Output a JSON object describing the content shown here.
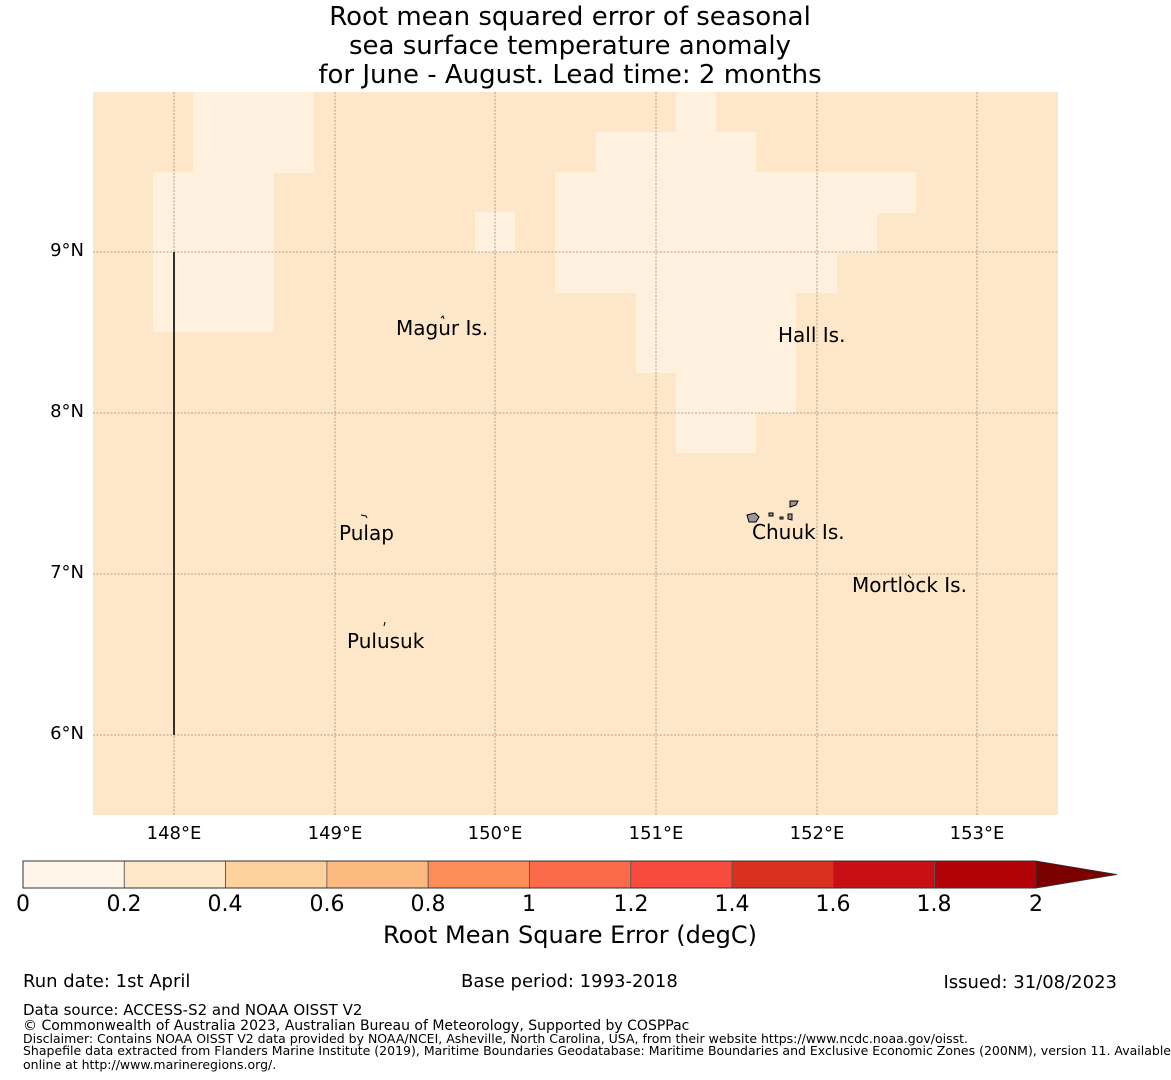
{
  "title": {
    "line1": "Root mean squared error of seasonal",
    "line2": "sea surface temperature anomaly",
    "line3": "for June - August. Lead time: 2 months"
  },
  "map": {
    "lon_range": [
      147.5,
      153.5
    ],
    "lat_range": [
      5.5,
      10.0
    ],
    "x_ticks": [
      "148°E",
      "149°E",
      "150°E",
      "151°E",
      "152°E",
      "153°E"
    ],
    "y_ticks": [
      "9°N",
      "8°N",
      "7°N",
      "6°N"
    ],
    "background_color": "#fee6c9",
    "low_color": "#fff1de",
    "places": [
      {
        "name": "Magur Is."
      },
      {
        "name": "Hall Is."
      },
      {
        "name": "Pulap"
      },
      {
        "name": "Chuuk Is."
      },
      {
        "name": "Mortlock Is."
      },
      {
        "name": "Pulusuk"
      }
    ]
  },
  "colorbar": {
    "label": "Root Mean Square Error (degC)",
    "ticks": [
      "0",
      "0.2",
      "0.4",
      "0.6",
      "0.8",
      "1",
      "1.2",
      "1.4",
      "1.6",
      "1.8",
      "2"
    ],
    "colors": [
      "#fff5e8",
      "#fee6c9",
      "#fdd19b",
      "#fcb97f",
      "#fc8d59",
      "#fb6a4a",
      "#f74b3d",
      "#d9301f",
      "#c81014",
      "#b10307",
      "#7a0000"
    ]
  },
  "footer": {
    "run_date": "Run date: 1st April",
    "base_period": "Base period: 1993-2018",
    "issued": "Issued: 31/08/2023",
    "data_source": "Data source: ACCESS-S2 and NOAA OISST V2",
    "copyright": "© Commonwealth of Australia 2023, Australian Bureau of Meteorology, Supported by COSPPac",
    "disclaimer": "Disclaimer: Contains NOAA OISST V2 data provided by NOAA/NCEI, Asheville, North Carolina, USA, from their website https://www.ncdc.noaa.gov/oisst.",
    "shapefile_1": "Shapefile data extracted from Flanders Marine Institute (2019), Maritime Boundaries Geodatabase: Maritime Boundaries and Exclusive Economic Zones (200NM), version 11. Available",
    "shapefile_2": "online at http://www.marineregions.org/."
  }
}
